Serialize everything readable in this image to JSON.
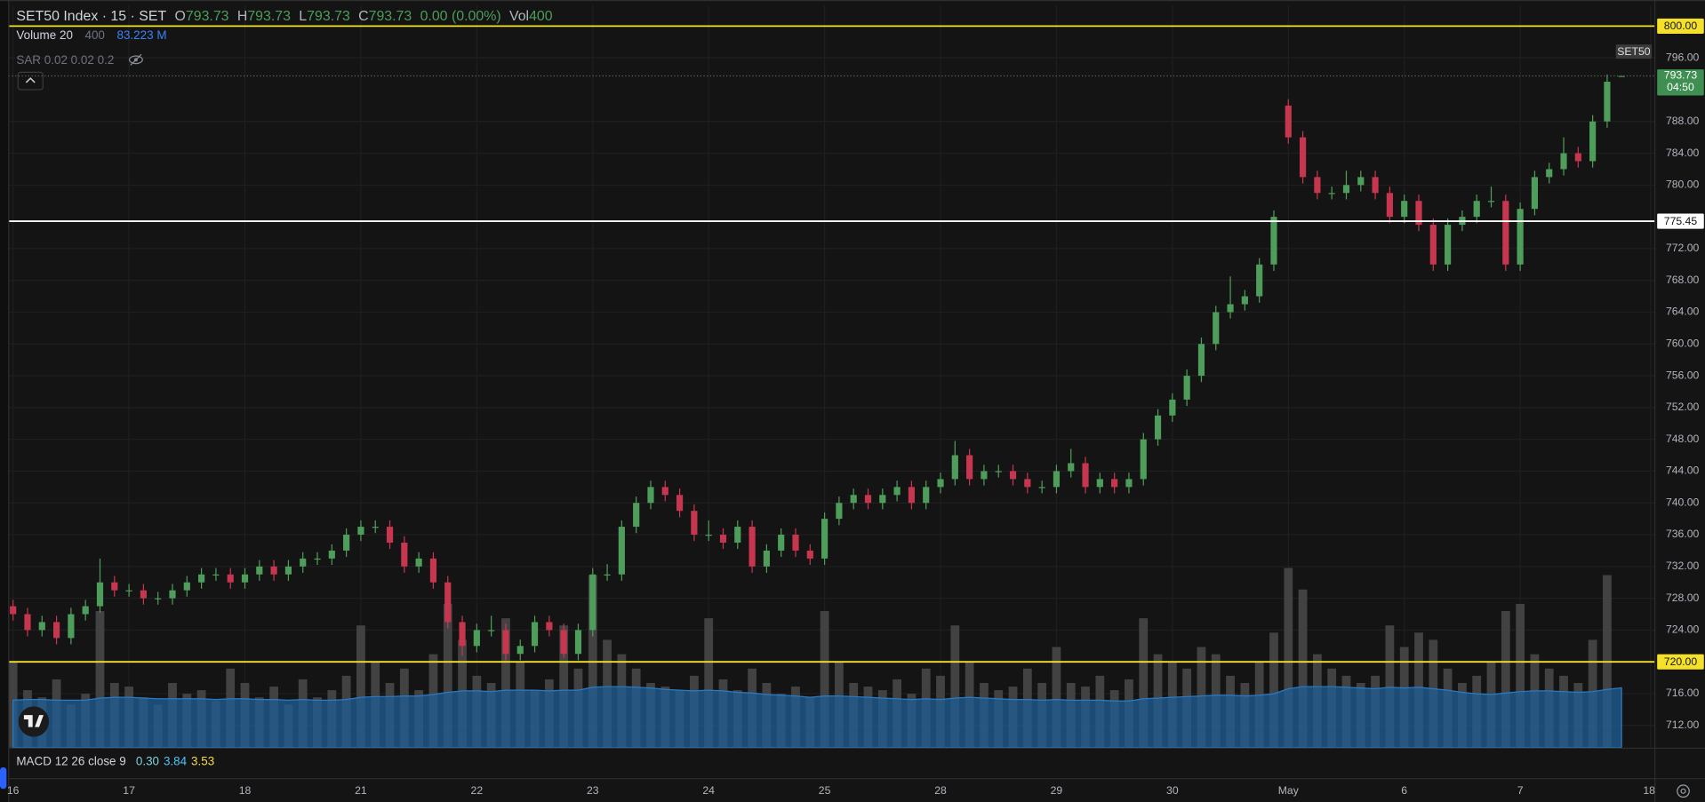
{
  "chart_data": {
    "type": "candlestick",
    "header": {
      "symbol": "SET50 Index · 15 · SET",
      "ohlc": [
        {
          "key": "O",
          "value": 793.73
        },
        {
          "key": "H",
          "value": 793.73
        },
        {
          "key": "L",
          "value": 793.73
        },
        {
          "key": "C",
          "value": 793.73
        }
      ],
      "change": "0.00 (0.00%)",
      "vol_key": "Vol",
      "vol_value": 400
    },
    "volume_legend": {
      "label": "Volume 20",
      "value": 400,
      "ma_label": "83.223 M"
    },
    "sar_legend": "SAR 0.02 0.02 0.2",
    "macd_legend": {
      "label": "MACD 12 26 close 9",
      "values": [
        {
          "label": "0.30",
          "color": "#7fd3d9"
        },
        {
          "label": "3.84",
          "color": "#4fc3f7"
        },
        {
          "label": "3.53",
          "color": "#f5d94a"
        }
      ]
    },
    "xlim": [
      -0.3,
      113.3
    ],
    "xticks": [
      {
        "value": 0,
        "label": "16"
      },
      {
        "value": 8,
        "label": "17"
      },
      {
        "value": 16,
        "label": "18"
      },
      {
        "value": 24,
        "label": "21"
      },
      {
        "value": 32,
        "label": "22"
      },
      {
        "value": 40,
        "label": "23"
      },
      {
        "value": 48,
        "label": "24"
      },
      {
        "value": 56,
        "label": "25"
      },
      {
        "value": 64,
        "label": "28"
      },
      {
        "value": 72,
        "label": "29"
      },
      {
        "value": 80,
        "label": "30"
      },
      {
        "value": 88,
        "label": "May"
      },
      {
        "value": 96,
        "label": "6"
      },
      {
        "value": 104,
        "label": "7"
      },
      {
        "value": 113,
        "label": "18:"
      }
    ],
    "ylim": [
      709.2,
      802.6
    ],
    "yticks": [
      {
        "value": 712,
        "label": "712.00"
      },
      {
        "value": 716,
        "label": "716.00"
      },
      {
        "value": 724,
        "label": "724.00"
      },
      {
        "value": 728,
        "label": "728.00"
      },
      {
        "value": 732,
        "label": "732.00"
      },
      {
        "value": 736,
        "label": "736.00"
      },
      {
        "value": 740,
        "label": "740.00"
      },
      {
        "value": 744,
        "label": "744.00"
      },
      {
        "value": 748,
        "label": "748.00"
      },
      {
        "value": 752,
        "label": "752.00"
      },
      {
        "value": 756,
        "label": "756.00"
      },
      {
        "value": 760,
        "label": "760.00"
      },
      {
        "value": 764,
        "label": "764.00"
      },
      {
        "value": 768,
        "label": "768.00"
      },
      {
        "value": 772,
        "label": "772.00"
      },
      {
        "value": 780,
        "label": "780.00"
      },
      {
        "value": 784,
        "label": "784.00"
      },
      {
        "value": 788,
        "label": "788.00"
      },
      {
        "value": 796,
        "label": "796.00"
      }
    ],
    "grid": true,
    "hlines": [
      {
        "value": 800,
        "label": "800.00",
        "color": "#f5e12a",
        "text_color": "#131313"
      },
      {
        "value": 775.45,
        "label": "775.45",
        "color": "#ffffff",
        "text_color": "#131313"
      },
      {
        "value": 720,
        "label": "720.00",
        "color": "#f5e12a",
        "text_color": "#131313"
      }
    ],
    "last_price": {
      "value": 793.73,
      "label": "793.73",
      "countdown": "04:50",
      "color": "#3f8f52"
    },
    "series": [
      {
        "name": "SET50",
        "up_color": "#4e9d5b",
        "down_color": "#c6364e",
        "open": [
          727,
          726,
          724,
          725,
          723,
          726,
          727,
          730,
          729,
          729,
          728,
          728,
          729,
          730,
          731,
          731,
          730,
          731,
          732,
          731,
          732,
          733,
          733,
          734,
          736,
          737,
          737,
          735,
          732,
          733,
          730,
          725,
          722,
          724,
          724,
          721,
          722,
          725,
          724,
          721,
          724,
          731,
          731,
          737,
          740,
          742,
          741,
          739,
          736,
          736,
          735,
          737,
          732,
          734,
          736,
          734,
          733,
          738,
          740,
          741,
          740,
          741,
          742,
          740,
          742,
          743,
          746,
          743,
          744,
          744,
          743,
          742,
          742,
          744,
          745,
          742,
          743,
          742,
          743,
          748,
          751,
          753,
          756,
          760,
          764,
          765,
          766,
          770,
          790,
          786,
          781,
          779,
          779,
          780,
          781,
          779,
          776,
          778,
          775,
          770,
          775,
          776,
          778,
          778,
          770,
          777,
          781,
          782,
          784,
          783,
          788,
          793.73
        ],
        "high": [
          727.8,
          726.8,
          725.8,
          725.8,
          726.8,
          727.8,
          733,
          730.8,
          729.8,
          729.8,
          728.8,
          729.8,
          730.8,
          731.8,
          731.8,
          731.8,
          731.8,
          732.8,
          732.8,
          732.8,
          733.8,
          733.8,
          734.8,
          736.8,
          737.8,
          737.8,
          737.8,
          735.8,
          733.8,
          733.8,
          730.8,
          725.8,
          724.8,
          725.8,
          724.8,
          722.8,
          725.8,
          725.8,
          724.8,
          724.8,
          731.8,
          732.3,
          737.8,
          740.8,
          742.8,
          742.8,
          741.8,
          739.8,
          737.8,
          736.8,
          737.8,
          737.8,
          734.8,
          736.8,
          736.8,
          734.8,
          738.8,
          740.8,
          741.8,
          741.8,
          741.8,
          742.8,
          742.8,
          742.8,
          743.8,
          747.8,
          746.8,
          744.8,
          744.8,
          744.8,
          743.8,
          742.8,
          744.8,
          746.8,
          745.8,
          743.8,
          743.8,
          743.8,
          748.8,
          751.8,
          753.8,
          756.8,
          760.8,
          764.8,
          768.5,
          766.8,
          770.8,
          776.8,
          790.8,
          786.8,
          781.8,
          779.8,
          781.8,
          781.8,
          781.8,
          779.8,
          778.8,
          778.8,
          775.8,
          775.8,
          776.8,
          778.8,
          779.8,
          778.8,
          777.8,
          781.8,
          782.8,
          786,
          784.8,
          788.8,
          793.9,
          793.73
        ],
        "low": [
          725.2,
          723.2,
          723.2,
          722.2,
          722.2,
          725.2,
          726.2,
          728.2,
          728.2,
          727.2,
          727.2,
          727.2,
          728.2,
          729.2,
          730.2,
          729.2,
          729.2,
          730.2,
          730.2,
          730.2,
          731.2,
          732.2,
          732.2,
          733.2,
          735.2,
          736.2,
          734.2,
          731.2,
          731.2,
          729.2,
          724.2,
          720.8,
          721.2,
          723.2,
          720.2,
          720.2,
          721.2,
          723.2,
          720.5,
          720.2,
          723.2,
          730.2,
          730.2,
          736.2,
          739.2,
          740.2,
          738.2,
          735.2,
          735.2,
          734.2,
          734.2,
          731.2,
          731.2,
          733.2,
          733.2,
          732.2,
          732.2,
          737.2,
          739.2,
          739.2,
          739.2,
          740.2,
          739.2,
          739.2,
          741.2,
          742.2,
          742.2,
          742.2,
          743.2,
          742.2,
          741.2,
          741.2,
          741.2,
          743.2,
          741.2,
          741.2,
          741.2,
          741.2,
          742.2,
          747.2,
          750.2,
          752.2,
          755.2,
          759.2,
          763.2,
          764.2,
          765.2,
          769.2,
          785.2,
          780.2,
          778.2,
          778.2,
          778.2,
          779.2,
          778.2,
          775.2,
          775.2,
          774.2,
          769.2,
          769.2,
          774.2,
          775.2,
          777.2,
          769.2,
          769.2,
          776.2,
          780.2,
          781.2,
          782.2,
          782.2,
          787.2,
          793.73
        ],
        "close": [
          726,
          724,
          725,
          723,
          726,
          727,
          730,
          729,
          729,
          728,
          728,
          729,
          730,
          731,
          731,
          730,
          731,
          732,
          731,
          732,
          733,
          733,
          734,
          736,
          737,
          737,
          735,
          732,
          733,
          730,
          725,
          722,
          724,
          724,
          721,
          722,
          725,
          724,
          721,
          724,
          731,
          731,
          737,
          740,
          742,
          741,
          739,
          736,
          736,
          735,
          737,
          732,
          734,
          736,
          734,
          733,
          738,
          740,
          741,
          740,
          741,
          742,
          740,
          742,
          743,
          746,
          743,
          744,
          744,
          743,
          742,
          742,
          744,
          745,
          742,
          743,
          742,
          743,
          748,
          751,
          753,
          756,
          760,
          764,
          765,
          766,
          770,
          776,
          786,
          781,
          779,
          779,
          780,
          781,
          779,
          776,
          778,
          775,
          770,
          775,
          776,
          778,
          778,
          770,
          777,
          781,
          782,
          784,
          783,
          788,
          793,
          793.73
        ]
      }
    ],
    "volume": {
      "lim": [
        0,
        260
      ],
      "color": "#4a4a4a",
      "values": [
        120,
        80,
        70,
        95,
        60,
        75,
        190,
        90,
        85,
        70,
        60,
        90,
        75,
        80,
        65,
        110,
        90,
        70,
        85,
        60,
        95,
        70,
        80,
        100,
        170,
        120,
        90,
        110,
        80,
        130,
        200,
        150,
        100,
        90,
        180,
        120,
        80,
        95,
        170,
        110,
        240,
        150,
        130,
        110,
        90,
        85,
        80,
        100,
        180,
        95,
        80,
        110,
        90,
        75,
        85,
        70,
        190,
        120,
        90,
        85,
        80,
        95,
        75,
        110,
        100,
        170,
        120,
        90,
        80,
        85,
        110,
        90,
        140,
        90,
        85,
        100,
        80,
        95,
        180,
        130,
        120,
        110,
        140,
        130,
        100,
        90,
        120,
        160,
        250,
        220,
        130,
        110,
        100,
        90,
        100,
        170,
        140,
        160,
        150,
        110,
        90,
        100,
        120,
        190,
        200,
        130,
        110,
        100,
        90,
        150,
        240,
        0.0004
      ],
      "ma": {
        "color": "#1f5f96",
        "values": [
          66,
          67,
          67,
          66,
          66,
          66,
          69,
          70,
          70,
          69,
          68,
          68,
          68,
          68,
          67,
          68,
          68,
          67,
          67,
          66,
          67,
          66,
          66,
          67,
          70,
          71,
          71,
          72,
          72,
          74,
          77,
          79,
          79,
          78,
          80,
          80,
          80,
          79,
          80,
          80,
          84,
          85,
          85,
          84,
          83,
          81,
          80,
          79,
          80,
          79,
          77,
          76,
          74,
          73,
          72,
          70,
          72,
          72,
          71,
          70,
          69,
          68,
          67,
          68,
          67,
          69,
          70,
          69,
          68,
          67,
          67,
          66,
          67,
          66,
          66,
          66,
          65,
          65,
          68,
          69,
          70,
          71,
          72,
          73,
          73,
          72,
          73,
          75,
          82,
          85,
          85,
          85,
          84,
          83,
          82,
          84,
          83,
          84,
          82,
          80,
          77,
          75,
          74,
          76,
          78,
          79,
          79,
          78,
          77,
          78,
          81,
          83.223
        ]
      }
    }
  }
}
